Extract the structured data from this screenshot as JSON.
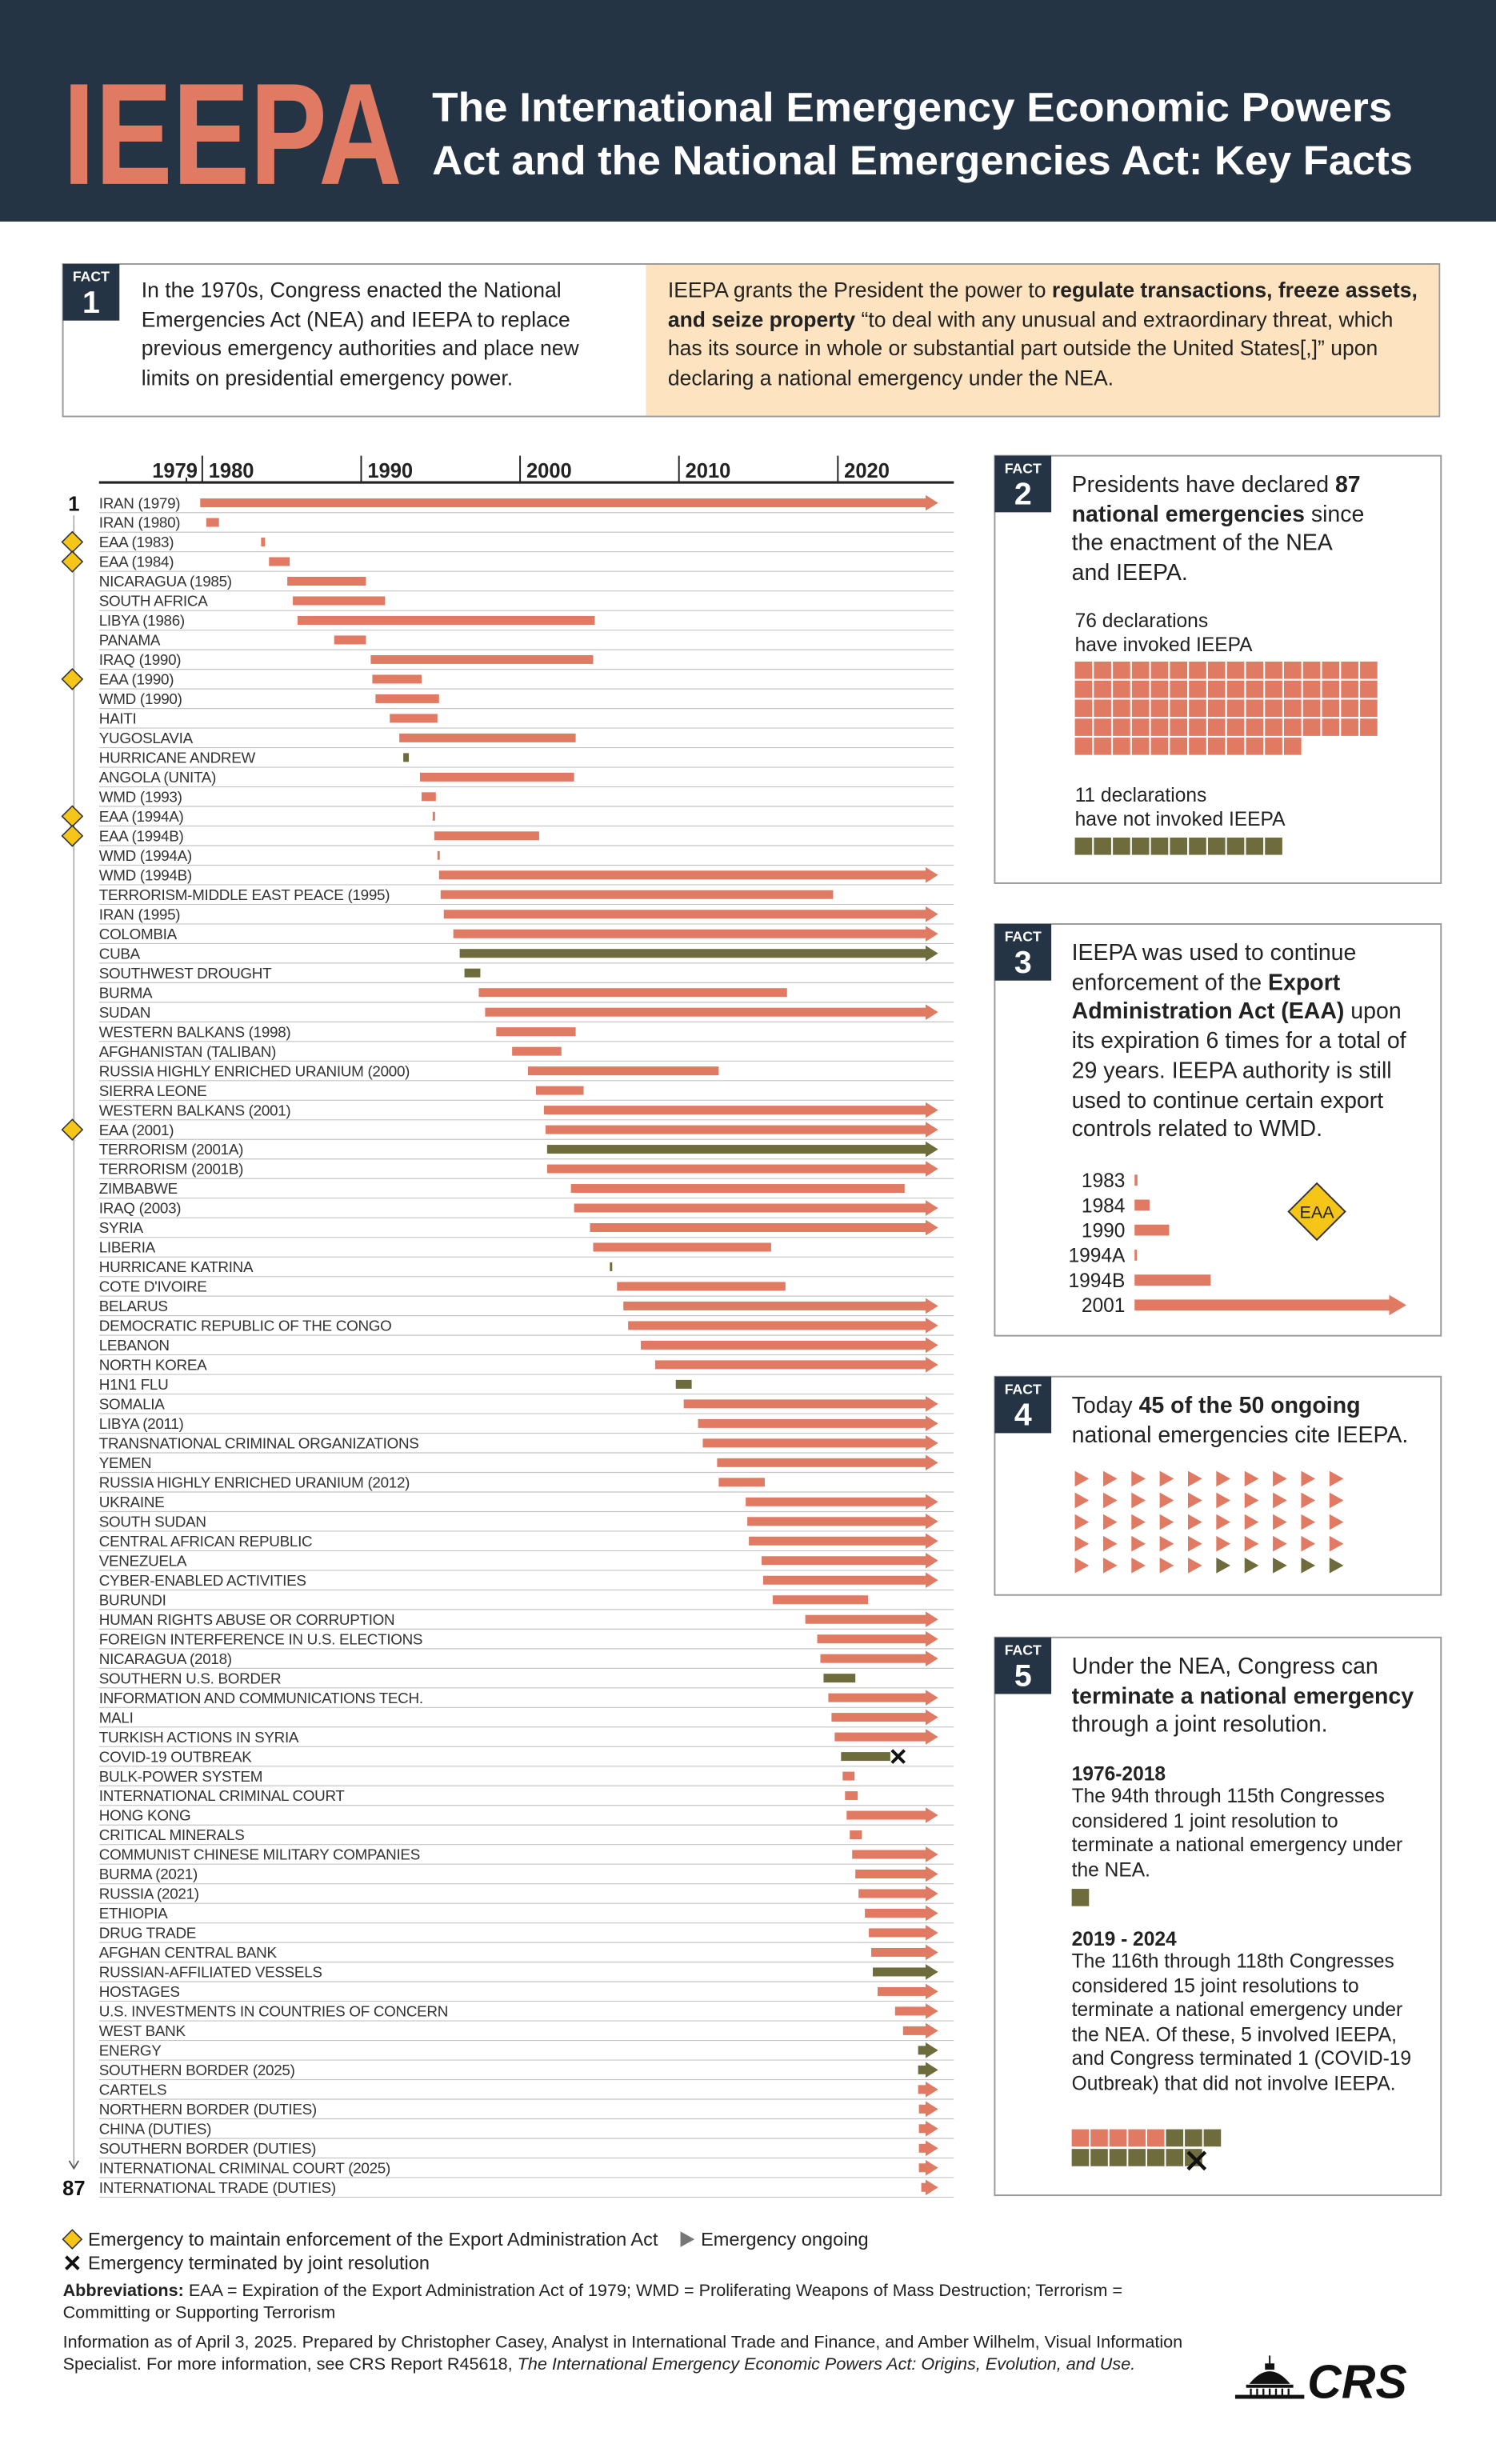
{
  "header": {
    "acronym": "IEEPA",
    "title": [
      "The International Emergency Economic Powers",
      "Act and the National Emergencies Act: Key Facts"
    ]
  },
  "fact1": {
    "tag": "FACT",
    "number": 1,
    "left": [
      "In the 1970s, Congress enacted the National Emergencies Act (NEA) and IEEPA to replace previous emergency authorities and place new limits on presidential emergency power."
    ],
    "right": [
      "IEEPA grants the President the power to ",
      "regulate transactions, freeze assets, and seize property",
      " “to deal with any unusual and extraordinary threat, which has its source in whole or substantial part outside the United States[,]” upon declaring a national emergency under the NEA."
    ]
  },
  "chart_data": {
    "type": "gantt",
    "xlim": [
      1973.5,
      2027.3
    ],
    "xticks": [
      1979,
      1980,
      1990,
      2000,
      2010,
      2020
    ],
    "row_numbers": [
      1,
      87
    ],
    "colors": {
      "ieepa": "#e07a62",
      "no_ieepa": "#6e6c3d"
    },
    "rows": [
      {
        "label": "IRAN (1979)",
        "start": 1979.87,
        "end": null
      },
      {
        "label": "IRAN (1980)",
        "start": 1980.25,
        "end": 1981.05
      },
      {
        "label": "EAA (1983)",
        "start": 1983.7,
        "end": 1983.95,
        "eaa": true
      },
      {
        "label": "EAA (1984)",
        "start": 1984.2,
        "end": 1985.5,
        "eaa": true
      },
      {
        "label": "NICARAGUA (1985)",
        "start": 1985.35,
        "end": 1990.3
      },
      {
        "label": "SOUTH AFRICA",
        "start": 1985.7,
        "end": 1991.5
      },
      {
        "label": "LIBYA (1986)",
        "start": 1986.0,
        "end": 2004.7
      },
      {
        "label": "PANAMA",
        "start": 1988.3,
        "end": 1990.3
      },
      {
        "label": "IRAQ (1990)",
        "start": 1990.6,
        "end": 2004.6
      },
      {
        "label": "EAA (1990)",
        "start": 1990.7,
        "end": 1993.8,
        "eaa": true
      },
      {
        "label": "WMD (1990)",
        "start": 1990.9,
        "end": 1994.9
      },
      {
        "label": "HAITI",
        "start": 1991.8,
        "end": 1994.8
      },
      {
        "label": "YUGOSLAVIA",
        "start": 1992.4,
        "end": 2003.5
      },
      {
        "label": "HURRICANE ANDREW",
        "start": 1992.65,
        "end": 1993.0,
        "ieepa": false
      },
      {
        "label": "ANGOLA (UNITA)",
        "start": 1993.7,
        "end": 2003.4
      },
      {
        "label": "WMD (1993)",
        "start": 1993.8,
        "end": 1994.7
      },
      {
        "label": "EAA (1994A)",
        "start": 1994.5,
        "end": 1994.6,
        "eaa": true
      },
      {
        "label": "EAA (1994B)",
        "start": 1994.6,
        "end": 2001.2,
        "eaa": true
      },
      {
        "label": "WMD (1994A)",
        "start": 1994.8,
        "end": 1994.9
      },
      {
        "label": "WMD (1994B)",
        "start": 1994.9,
        "end": null
      },
      {
        "label": "TERRORISM-MIDDLE EAST PEACE (1995)",
        "start": 1995.0,
        "end": 2019.7
      },
      {
        "label": "IRAN (1995)",
        "start": 1995.2,
        "end": null
      },
      {
        "label": "COLOMBIA",
        "start": 1995.8,
        "end": null
      },
      {
        "label": "CUBA",
        "start": 1996.2,
        "end": null,
        "ieepa": false
      },
      {
        "label": "SOUTHWEST DROUGHT",
        "start": 1996.5,
        "end": 1997.5,
        "ieepa": false
      },
      {
        "label": "BURMA",
        "start": 1997.4,
        "end": 2016.8
      },
      {
        "label": "SUDAN",
        "start": 1997.8,
        "end": null
      },
      {
        "label": "WESTERN BALKANS (1998)",
        "start": 1998.5,
        "end": 2003.5
      },
      {
        "label": "AFGHANISTAN (TALIBAN)",
        "start": 1999.5,
        "end": 2002.6
      },
      {
        "label": "RUSSIA HIGHLY ENRICHED URANIUM (2000)",
        "start": 2000.5,
        "end": 2012.5
      },
      {
        "label": "SIERRA LEONE",
        "start": 2001.0,
        "end": 2004.0
      },
      {
        "label": "WESTERN BALKANS (2001)",
        "start": 2001.5,
        "end": null
      },
      {
        "label": "EAA (2001)",
        "start": 2001.6,
        "end": null,
        "eaa": true
      },
      {
        "label": "TERRORISM (2001A)",
        "start": 2001.7,
        "end": null,
        "ieepa": false
      },
      {
        "label": "TERRORISM (2001B)",
        "start": 2001.7,
        "end": null
      },
      {
        "label": "ZIMBABWE",
        "start": 2003.2,
        "end": 2024.2
      },
      {
        "label": "IRAQ (2003)",
        "start": 2003.4,
        "end": null
      },
      {
        "label": "SYRIA",
        "start": 2004.4,
        "end": null
      },
      {
        "label": "LIBERIA",
        "start": 2004.6,
        "end": 2015.8
      },
      {
        "label": "HURRICANE KATRINA",
        "start": 2005.65,
        "end": 2005.8,
        "ieepa": false
      },
      {
        "label": "COTE D'IVOIRE",
        "start": 2006.1,
        "end": 2016.7
      },
      {
        "label": "BELARUS",
        "start": 2006.5,
        "end": null
      },
      {
        "label": "DEMOCRATIC REPUBLIC OF THE CONGO",
        "start": 2006.8,
        "end": null
      },
      {
        "label": "LEBANON",
        "start": 2007.6,
        "end": null
      },
      {
        "label": "NORTH KOREA",
        "start": 2008.5,
        "end": null
      },
      {
        "label": "H1N1 FLU",
        "start": 2009.8,
        "end": 2010.8,
        "ieepa": false
      },
      {
        "label": "SOMALIA",
        "start": 2010.3,
        "end": null
      },
      {
        "label": "LIBYA (2011)",
        "start": 2011.2,
        "end": null
      },
      {
        "label": "TRANSNATIONAL CRIMINAL ORGANIZATIONS",
        "start": 2011.5,
        "end": null
      },
      {
        "label": "YEMEN",
        "start": 2012.4,
        "end": null
      },
      {
        "label": "RUSSIA HIGHLY ENRICHED URANIUM (2012)",
        "start": 2012.5,
        "end": 2015.4
      },
      {
        "label": "UKRAINE",
        "start": 2014.2,
        "end": null
      },
      {
        "label": "SOUTH SUDAN",
        "start": 2014.3,
        "end": null
      },
      {
        "label": "CENTRAL AFRICAN REPUBLIC",
        "start": 2014.4,
        "end": null
      },
      {
        "label": "VENEZUELA",
        "start": 2015.2,
        "end": null
      },
      {
        "label": "CYBER-ENABLED ACTIVITIES",
        "start": 2015.3,
        "end": null
      },
      {
        "label": "BURUNDI",
        "start": 2015.9,
        "end": 2021.9
      },
      {
        "label": "HUMAN RIGHTS ABUSE OR CORRUPTION",
        "start": 2017.95,
        "end": null
      },
      {
        "label": "FOREIGN INTERFERENCE IN U.S. ELECTIONS",
        "start": 2018.7,
        "end": null
      },
      {
        "label": "NICARAGUA (2018)",
        "start": 2018.9,
        "end": null
      },
      {
        "label": "SOUTHERN U.S. BORDER",
        "start": 2019.1,
        "end": 2021.1,
        "ieepa": false
      },
      {
        "label": "INFORMATION AND COMMUNICATIONS TECH.",
        "start": 2019.4,
        "end": null
      },
      {
        "label": "MALI",
        "start": 2019.6,
        "end": null
      },
      {
        "label": "TURKISH ACTIONS IN SYRIA",
        "start": 2019.8,
        "end": null
      },
      {
        "label": "COVID-19 OUTBREAK",
        "start": 2020.2,
        "end": 2023.3,
        "ieepa": false,
        "terminated": true
      },
      {
        "label": "BULK-POWER SYSTEM",
        "start": 2020.3,
        "end": 2021.05
      },
      {
        "label": "INTERNATIONAL CRIMINAL COURT",
        "start": 2020.45,
        "end": 2021.25
      },
      {
        "label": "HONG KONG",
        "start": 2020.55,
        "end": null
      },
      {
        "label": "CRITICAL MINERALS",
        "start": 2020.75,
        "end": 2021.5
      },
      {
        "label": "COMMUNIST CHINESE MILITARY COMPANIES",
        "start": 2020.9,
        "end": null
      },
      {
        "label": "BURMA (2021)",
        "start": 2021.1,
        "end": null
      },
      {
        "label": "RUSSIA (2021)",
        "start": 2021.3,
        "end": null
      },
      {
        "label": "ETHIOPIA",
        "start": 2021.7,
        "end": null
      },
      {
        "label": "DRUG TRADE",
        "start": 2021.95,
        "end": null
      },
      {
        "label": "AFGHAN CENTRAL BANK",
        "start": 2022.1,
        "end": null
      },
      {
        "label": "RUSSIAN-AFFILIATED VESSELS",
        "start": 2022.2,
        "end": null,
        "ieepa": false
      },
      {
        "label": "HOSTAGES",
        "start": 2022.5,
        "end": null
      },
      {
        "label": "U.S. INVESTMENTS IN COUNTRIES OF CONCERN",
        "start": 2023.6,
        "end": null
      },
      {
        "label": "WEST BANK",
        "start": 2024.1,
        "end": null
      },
      {
        "label": "ENERGY",
        "start": 2025.05,
        "end": null,
        "ieepa": false
      },
      {
        "label": "SOUTHERN BORDER (2025)",
        "start": 2025.05,
        "end": null,
        "ieepa": false
      },
      {
        "label": "CARTELS",
        "start": 2025.05,
        "end": null
      },
      {
        "label": "NORTHERN BORDER (DUTIES)",
        "start": 2025.1,
        "end": null
      },
      {
        "label": "CHINA (DUTIES)",
        "start": 2025.1,
        "end": null
      },
      {
        "label": "SOUTHERN BORDER (DUTIES)",
        "start": 2025.1,
        "end": null
      },
      {
        "label": "INTERNATIONAL CRIMINAL COURT (2025)",
        "start": 2025.1,
        "end": null
      },
      {
        "label": "INTERNATIONAL TRADE (DUTIES)",
        "start": 2025.25,
        "end": null
      }
    ]
  },
  "legend": {
    "eaa": "Emergency to maintain enforcement of the Export Administration Act",
    "ongoing": "Emergency ongoing",
    "terminated": "Emergency terminated by joint resolution"
  },
  "fact2": {
    "tag": "FACT",
    "number": 2,
    "text": [
      "Presidents have declared ",
      "87 national emergencies",
      " since the enactment of the NEA and IEEPA."
    ],
    "invoked": {
      "count": 76,
      "text": [
        "declarations",
        "have invoked IEEPA"
      ]
    },
    "not_invoked": {
      "count": 11,
      "text": [
        "declarations",
        "have not invoked IEEPA"
      ]
    }
  },
  "fact3": {
    "tag": "FACT",
    "number": 3,
    "text": [
      "IEEPA was used to continue enforcement of the ",
      "Export Administration Act (EAA)",
      " upon its expiration 6 times for a total of 29 years. IEEPA authority is still used to continue certain export controls related to WMD."
    ],
    "chart": {
      "categories": [
        "1983",
        "1984",
        "1990",
        "1994A",
        "1994B",
        "2001"
      ],
      "values": [
        0.25,
        1.3,
        3,
        0.1,
        6.6,
        23.6
      ],
      "xlim": [
        0,
        23.6
      ],
      "ongoing": "2001"
    },
    "badge": "EAA"
  },
  "fact4": {
    "tag": "FACT",
    "number": 4,
    "text": [
      "Today ",
      "45 of the 50 ongoing",
      " national emergencies cite IEEPA."
    ],
    "cite_ieepa": 45,
    "ongoing": 50
  },
  "fact5": {
    "tag": "FACT",
    "number": 5,
    "text": [
      "Under the NEA, Congress can ",
      "terminate a national emergency",
      " through a  joint resolution."
    ],
    "periods": [
      {
        "title": "1976-2018",
        "text": [
          "The 94th through 115th Congresses considered 1 joint resolution to terminate a national emergency under the NEA."
        ],
        "considered": 1
      },
      {
        "title": "2019 - 2024",
        "text": [
          "The 116th through 118th Congresses considered 15 joint resolutions to terminate a national emergency under the NEA. Of these, 5 involved IEEPA, and Congress terminated 1 (COVID-19 Outbreak) that did not involve IEEPA."
        ],
        "considered": 15,
        "involved_ieepa": 5,
        "terminated": 1
      }
    ]
  },
  "notes": {
    "abbreviations": [
      "Abbreviations:",
      " EAA = Expiration of the Export Administration Act of 1979; WMD = Proliferating Weapons of Mass Destruction; Terrorism = Committing or Supporting Terrorism"
    ],
    "info": [
      "Information as of April 3, 2025. Prepared by Christopher Casey, Analyst in International Trade and Finance, and Amber Wilhelm, Visual Information Specialist. For more information, see CRS Report R45618, ",
      "The International Emergency Economic Powers Act: Origins, Evolution, and Use."
    ],
    "logo": "CRS"
  }
}
